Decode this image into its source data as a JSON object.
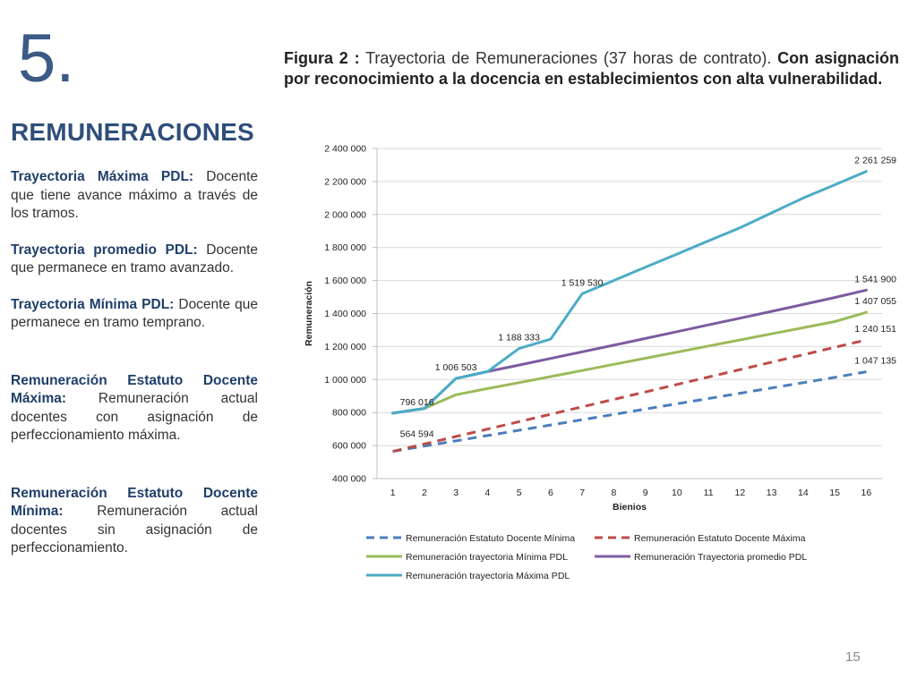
{
  "slide": {
    "number": "5.",
    "section_title": "REMUNERACIONES",
    "caption_label": "Figura 2 :",
    "caption_text": " Trayectoria de Remuneraciones (37 horas de contrato).",
    "caption_bold": " Con asignación por reconocimiento a la docencia en establecimientos con alta vulnerabilidad.",
    "page_number": "15"
  },
  "definitions": [
    {
      "term": "Trayectoria Máxima PDL:",
      "text": " Docente que tiene avance máximo a través de los tramos."
    },
    {
      "term": "Trayectoria promedio PDL:",
      "text": " Docente que permanece en tramo avanzado."
    },
    {
      "term": "Trayectoria Mínima PDL:",
      "text": " Docente que permanece en tramo temprano."
    },
    {
      "term": "Remuneración Estatuto Docente Máxima:",
      "text": " Remuneración actual docentes con asignación de perfeccionamiento máxima."
    },
    {
      "term": "Remuneración Estatuto Docente Mínima:",
      "text": " Remuneración actual docentes sin asignación de perfeccionamiento."
    }
  ],
  "chart_data": {
    "type": "line",
    "xlabel": "Bienios",
    "ylabel": "Remuneración",
    "x": [
      1,
      2,
      3,
      4,
      5,
      6,
      7,
      8,
      9,
      10,
      11,
      12,
      13,
      14,
      15,
      16
    ],
    "ylim": [
      400000,
      2400000
    ],
    "yticks": [
      "400 000",
      "600 000",
      "800 000",
      "1 000 000",
      "1 200 000",
      "1 400 000",
      "1 600 000",
      "1 800 000",
      "2 000 000",
      "2 200 000",
      "2 400 000"
    ],
    "grid": true,
    "legend_position": "bottom",
    "series": [
      {
        "name": "Remuneración Estatuto Docente Mínima",
        "color": "#4A7EBB",
        "dashed": true,
        "values": [
          564594,
          596630,
          628666,
          660702,
          692738,
          724774,
          756810,
          788846,
          820882,
          852918,
          884954,
          916990,
          949026,
          981062,
          1013098,
          1047135
        ]
      },
      {
        "name": "Remuneración Estatuto Docente Máxima",
        "color": "#BE4B48",
        "dashed": true,
        "values": [
          564594,
          609631,
          654668,
          699705,
          744742,
          789779,
          834816,
          879853,
          924890,
          969927,
          1014964,
          1060001,
          1105038,
          1150075,
          1195112,
          1240151
        ]
      },
      {
        "name": "Remuneración trayectoria Mínima PDL",
        "color": "#9BBB59",
        "dashed": false,
        "values": [
          796016,
          825000,
          908000,
          945000,
          981000,
          1018000,
          1055000,
          1092000,
          1129000,
          1166000,
          1203000,
          1240000,
          1277000,
          1314000,
          1351000,
          1407055
        ]
      },
      {
        "name": "Remuneración Trayectoria promedio PDL",
        "color": "#7B5CA0",
        "dashed": false,
        "values": [
          796016,
          825000,
          1006503,
          1048000,
          1088000,
          1128000,
          1168000,
          1208000,
          1249000,
          1290000,
          1331000,
          1372000,
          1413000,
          1455000,
          1497000,
          1541900
        ]
      },
      {
        "name": "Remuneración trayectoria Máxima PDL",
        "color": "#4BACC6",
        "dashed": false,
        "values": [
          796016,
          825000,
          1006503,
          1048000,
          1188333,
          1245000,
          1519530,
          1600000,
          1680000,
          1760000,
          1840000,
          1920000,
          2010000,
          2100000,
          2180000,
          2261259
        ]
      }
    ],
    "data_labels": [
      {
        "series": 4,
        "index": 15,
        "text": "2 261 259"
      },
      {
        "series": 4,
        "index": 6,
        "text": "1 519 530"
      },
      {
        "series": 4,
        "index": 4,
        "text": "1 188 333"
      },
      {
        "series": 4,
        "index": 2,
        "text": "1 006 503"
      },
      {
        "series": 4,
        "index": 0,
        "text": "796 016"
      },
      {
        "series": 3,
        "index": 15,
        "text": "1 541 900"
      },
      {
        "series": 2,
        "index": 15,
        "text": "1 407 055"
      },
      {
        "series": 1,
        "index": 15,
        "text": "1 240 151"
      },
      {
        "series": 0,
        "index": 15,
        "text": "1 047 135"
      },
      {
        "series": 0,
        "index": 0,
        "text": "564 594"
      }
    ]
  }
}
